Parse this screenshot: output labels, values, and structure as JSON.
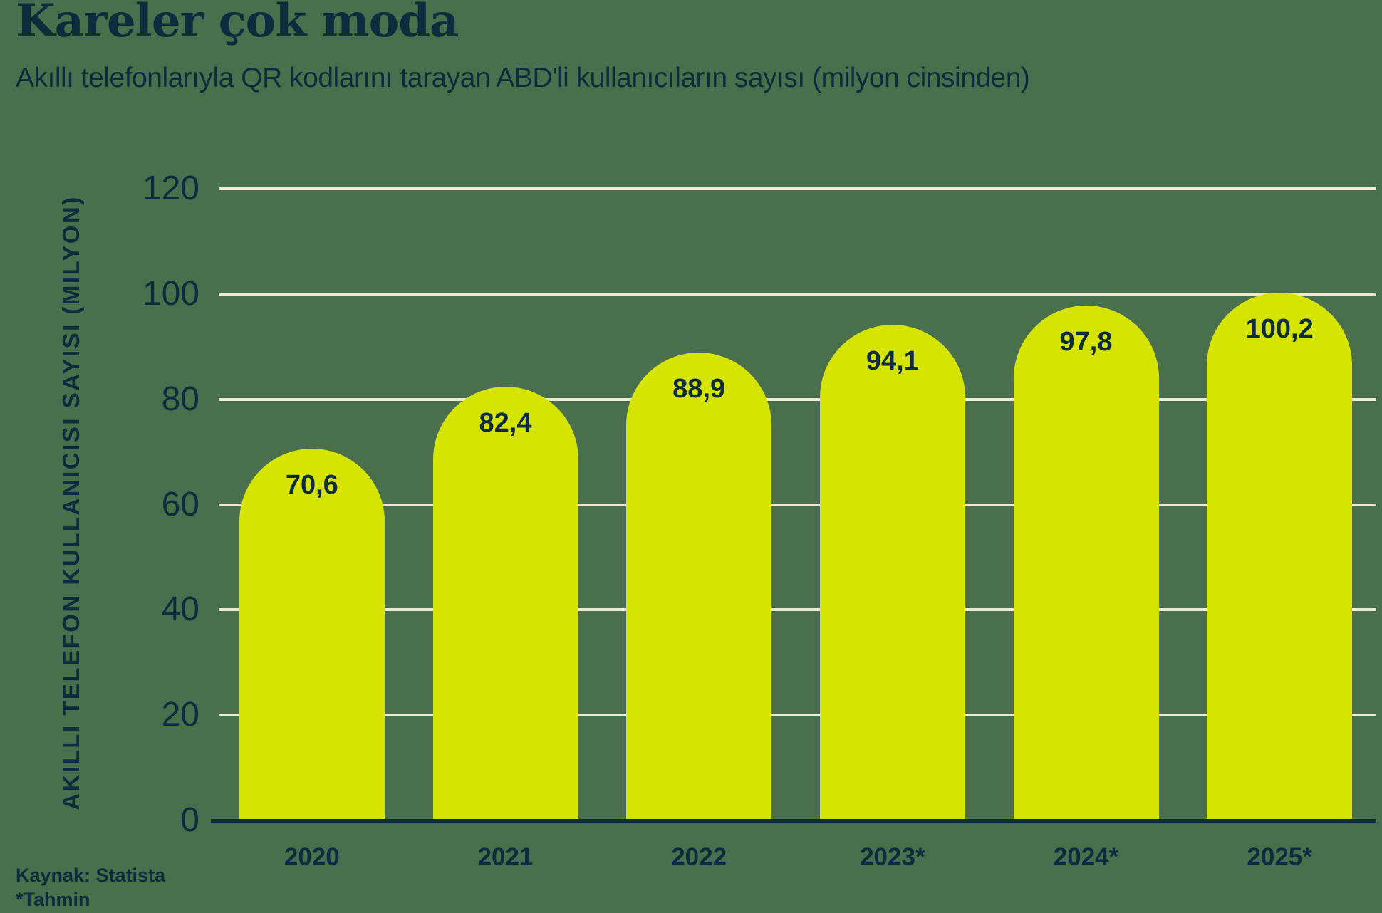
{
  "title": "Kareler çok moda",
  "subtitle": "Akıllı telefonlarıyla QR kodlarını tarayan ABD'li kullanıcıların sayısı (milyon cinsinden)",
  "footer": {
    "source": "Kaynak: Statista",
    "footnote": "*Tahmin"
  },
  "colors": {
    "background": "#4a6f4c",
    "bar": "#d5e402",
    "gridline": "#f0e9d1",
    "text": "#0f2c3f"
  },
  "chart_data": {
    "type": "bar",
    "title": "Kareler çok moda",
    "subtitle": "Akıllı telefonlarıyla QR kodlarını tarayan ABD'li kullanıcıların sayısı (milyon cinsinden)",
    "categories": [
      "2020",
      "2021",
      "2022",
      "2023*",
      "2024*",
      "2025*"
    ],
    "values": [
      70.6,
      82.4,
      88.9,
      94.1,
      97.8,
      100.2
    ],
    "value_labels": [
      "70,6",
      "82,4",
      "88,9",
      "94,1",
      "97,8",
      "100,2"
    ],
    "xlabel": "",
    "ylabel": "AKILLI TELEFON KULLANICISI SAYISI (MILYON)",
    "ylim": [
      0,
      120
    ],
    "yticks": [
      0,
      20,
      40,
      60,
      80,
      100,
      120
    ],
    "grid": true,
    "legend": false,
    "bar_corner": "rounded-top",
    "source": "Kaynak: Statista",
    "footnote": "*Tahmin"
  }
}
